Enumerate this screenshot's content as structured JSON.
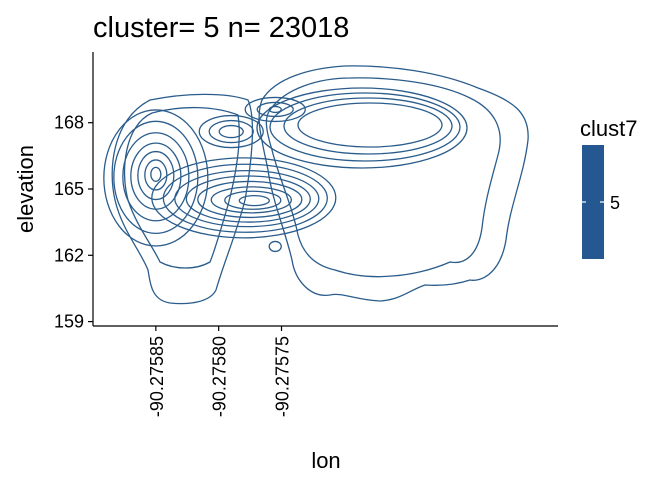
{
  "chart_data": {
    "type": "contour",
    "title": "cluster= 5 n= 23018",
    "xlabel": "lon",
    "ylabel": "elevation",
    "xlim": [
      -90.2759,
      -90.27553
    ],
    "ylim": [
      158.8,
      171.2
    ],
    "x_ticks": [
      -90.27585,
      -90.2758,
      -90.27575
    ],
    "x_tick_labels": [
      "-90.27585",
      "-90.27580",
      "-90.27575"
    ],
    "y_ticks": [
      159,
      162,
      165,
      168
    ],
    "y_tick_labels": [
      "159",
      "162",
      "165",
      "168"
    ],
    "contour_color": "#2b5d8c",
    "legend": {
      "title": "clust7",
      "labels": [
        "5"
      ],
      "fill": "#255890",
      "position": "right"
    },
    "peaks": [
      {
        "lon": -90.27585,
        "elevation": 165.5,
        "levels": 7
      },
      {
        "lon": -90.27579,
        "elevation": 167.6,
        "levels": 8
      },
      {
        "lon": -90.275755,
        "elevation": 168.6,
        "levels": 8
      },
      {
        "lon": -90.27578,
        "elevation": 164.6,
        "levels": 8
      },
      {
        "lon": -90.275755,
        "elevation": 162.4,
        "levels": 1
      }
    ]
  }
}
